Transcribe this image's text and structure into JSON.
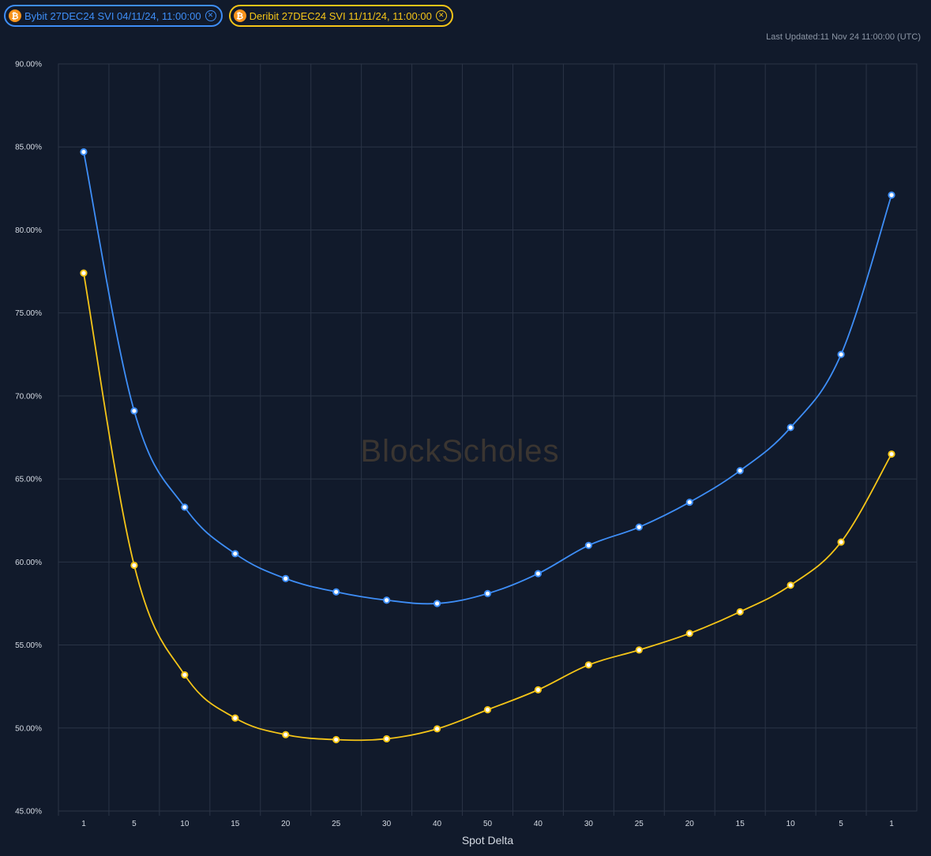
{
  "legend": [
    {
      "label": "Bybit 27DEC24 SVI 04/11/24, 11:00:00",
      "color": "#3e8ef7",
      "icon": "bitcoin-icon"
    },
    {
      "label": "Deribit 27DEC24 SVI 11/11/24, 11:00:00",
      "color": "#f5c518",
      "icon": "bitcoin-icon"
    }
  ],
  "last_updated": "Last Updated:11 Nov 24 11:00:00 (UTC)",
  "watermark": "BlockScholes",
  "chart_data": {
    "type": "line",
    "xlabel": "Spot Delta",
    "ylabel": "",
    "categories": [
      "1",
      "5",
      "10",
      "15",
      "20",
      "25",
      "30",
      "40",
      "50",
      "40",
      "30",
      "25",
      "20",
      "15",
      "10",
      "5",
      "1"
    ],
    "ylim": [
      45,
      90
    ],
    "yticks": [
      "45.00%",
      "50.00%",
      "55.00%",
      "60.00%",
      "65.00%",
      "70.00%",
      "75.00%",
      "80.00%",
      "85.00%",
      "90.00%"
    ],
    "grid": true,
    "series": [
      {
        "name": "Bybit 27DEC24 SVI 04/11/24, 11:00:00",
        "color": "#3e8ef7",
        "values": [
          84.7,
          69.1,
          63.3,
          60.5,
          59.0,
          58.2,
          57.7,
          57.5,
          58.1,
          59.3,
          61.0,
          62.1,
          63.6,
          65.5,
          68.1,
          72.5,
          82.1
        ]
      },
      {
        "name": "Deribit 27DEC24 SVI 11/11/24, 11:00:00",
        "color": "#f5c518",
        "values": [
          77.4,
          59.8,
          53.2,
          50.6,
          49.6,
          49.3,
          49.35,
          49.95,
          51.1,
          52.3,
          53.8,
          54.7,
          55.7,
          57.0,
          58.6,
          61.2,
          66.5
        ]
      }
    ]
  }
}
